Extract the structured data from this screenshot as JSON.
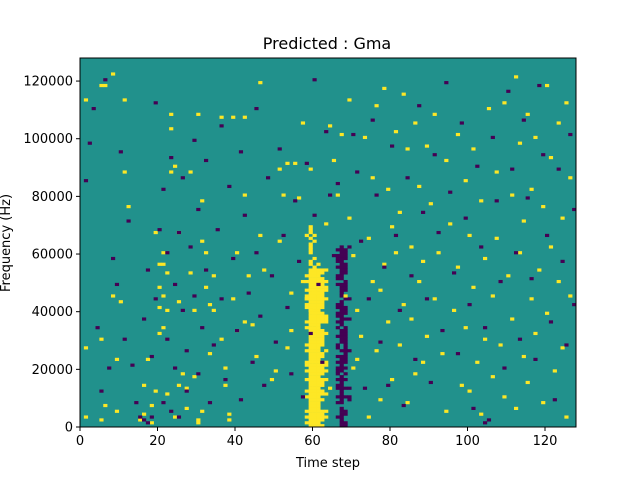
{
  "chart_data": {
    "type": "heatmap",
    "title": "Predicted : Gma",
    "xlabel": "Time step",
    "ylabel": "Frequency (Hz)",
    "xlim": [
      0,
      128
    ],
    "ylim": [
      0,
      128000
    ],
    "x_ticks": [
      0,
      20,
      40,
      60,
      80,
      100,
      120
    ],
    "y_ticks": [
      0,
      20000,
      40000,
      60000,
      80000,
      100000,
      120000
    ],
    "colormap": "viridis",
    "colors": {
      "background": "#21918c",
      "low": "#440154",
      "high": "#fde725"
    },
    "dominant_feature": "vertical band of high values around time steps 58-63 with a parallel band of low values around time steps 66-70",
    "cells_high": [
      [
        1,
        113
      ],
      [
        1,
        27
      ],
      [
        1,
        3
      ],
      [
        5,
        118
      ],
      [
        5,
        30
      ],
      [
        5,
        2
      ],
      [
        6,
        7
      ],
      [
        6,
        118
      ],
      [
        8,
        122
      ],
      [
        8,
        45
      ],
      [
        9,
        23
      ],
      [
        9,
        5
      ],
      [
        10,
        43
      ],
      [
        11,
        113
      ],
      [
        11,
        88
      ],
      [
        12,
        76
      ],
      [
        15,
        2
      ],
      [
        16,
        14
      ],
      [
        16,
        4
      ],
      [
        17,
        23
      ],
      [
        18,
        1
      ],
      [
        18,
        7
      ],
      [
        19,
        67
      ],
      [
        19,
        12
      ],
      [
        20,
        56
      ],
      [
        20,
        48
      ],
      [
        20,
        32
      ],
      [
        20,
        41
      ],
      [
        21,
        60
      ],
      [
        21,
        34
      ],
      [
        21,
        45
      ],
      [
        21,
        56
      ],
      [
        22,
        53
      ],
      [
        22,
        40
      ],
      [
        22,
        11
      ],
      [
        23,
        108
      ],
      [
        23,
        88
      ],
      [
        23,
        103
      ],
      [
        24,
        90
      ],
      [
        24,
        3
      ],
      [
        25,
        67
      ],
      [
        25,
        43
      ],
      [
        25,
        14
      ],
      [
        26,
        18
      ],
      [
        27,
        6
      ],
      [
        27,
        13
      ],
      [
        28,
        88
      ],
      [
        28,
        53
      ],
      [
        29,
        40
      ],
      [
        29,
        17
      ],
      [
        30,
        108
      ],
      [
        30,
        1
      ],
      [
        30,
        2
      ],
      [
        31,
        78
      ],
      [
        31,
        64
      ],
      [
        31,
        5
      ],
      [
        32,
        60
      ],
      [
        32,
        48
      ],
      [
        33,
        42
      ],
      [
        33,
        25
      ],
      [
        34,
        52
      ],
      [
        34,
        40
      ],
      [
        36,
        107
      ],
      [
        36,
        30
      ],
      [
        37,
        20
      ],
      [
        37,
        14
      ],
      [
        38,
        4
      ],
      [
        38,
        2
      ],
      [
        39,
        107
      ],
      [
        39,
        44
      ],
      [
        40,
        60
      ],
      [
        40,
        33
      ],
      [
        42,
        107
      ],
      [
        42,
        80
      ],
      [
        42,
        36
      ],
      [
        43,
        52
      ],
      [
        44,
        35
      ],
      [
        45,
        24
      ],
      [
        46,
        119
      ],
      [
        46,
        66
      ],
      [
        47,
        54
      ],
      [
        49,
        16
      ],
      [
        50,
        19
      ],
      [
        51,
        89
      ],
      [
        51,
        64
      ],
      [
        52,
        80
      ],
      [
        53,
        91
      ],
      [
        53,
        27
      ],
      [
        54,
        46
      ],
      [
        54,
        33
      ],
      [
        55,
        91
      ],
      [
        56,
        79
      ],
      [
        57,
        105
      ],
      [
        57,
        50
      ],
      [
        58,
        66
      ],
      [
        58,
        44
      ],
      [
        59,
        89
      ],
      [
        59,
        40
      ],
      [
        60,
        46
      ],
      [
        60,
        39
      ],
      [
        61,
        56
      ],
      [
        61,
        34
      ],
      [
        62,
        49
      ],
      [
        62,
        12
      ],
      [
        63,
        70
      ],
      [
        63,
        26
      ],
      [
        64,
        104
      ],
      [
        64,
        13
      ],
      [
        65,
        92
      ],
      [
        66,
        80
      ],
      [
        67,
        101
      ],
      [
        68,
        45
      ],
      [
        69,
        113
      ],
      [
        69,
        72
      ],
      [
        70,
        20
      ],
      [
        70,
        59
      ],
      [
        71,
        40
      ],
      [
        71,
        23
      ],
      [
        72,
        31
      ],
      [
        73,
        100
      ],
      [
        74,
        65
      ],
      [
        74,
        3
      ],
      [
        75,
        86
      ],
      [
        75,
        50
      ],
      [
        76,
        111
      ],
      [
        76,
        26
      ],
      [
        77,
        47
      ],
      [
        77,
        9
      ],
      [
        78,
        117
      ],
      [
        78,
        56
      ],
      [
        79,
        82
      ],
      [
        79,
        36
      ],
      [
        80,
        69
      ],
      [
        80,
        16
      ],
      [
        81,
        102
      ],
      [
        81,
        60
      ],
      [
        82,
        74
      ],
      [
        82,
        28
      ],
      [
        83,
        115
      ],
      [
        83,
        42
      ],
      [
        84,
        96
      ],
      [
        84,
        8
      ],
      [
        85,
        62
      ],
      [
        85,
        37
      ],
      [
        86,
        105
      ],
      [
        86,
        18
      ],
      [
        87,
        83
      ],
      [
        87,
        50
      ],
      [
        88,
        22
      ],
      [
        88,
        57
      ],
      [
        89,
        97
      ],
      [
        89,
        31
      ],
      [
        90,
        77
      ],
      [
        91,
        108
      ],
      [
        91,
        44
      ],
      [
        92,
        60
      ],
      [
        93,
        25
      ],
      [
        94,
        92
      ],
      [
        94,
        5
      ],
      [
        95,
        70
      ],
      [
        96,
        40
      ],
      [
        97,
        101
      ],
      [
        97,
        55
      ],
      [
        98,
        14
      ],
      [
        99,
        85
      ],
      [
        99,
        34
      ],
      [
        100,
        66
      ],
      [
        100,
        12
      ],
      [
        101,
        96
      ],
      [
        101,
        48
      ],
      [
        102,
        22
      ],
      [
        103,
        78
      ],
      [
        103,
        4
      ],
      [
        104,
        58
      ],
      [
        104,
        30
      ],
      [
        105,
        110
      ],
      [
        106,
        45
      ],
      [
        106,
        17
      ],
      [
        107,
        88
      ],
      [
        107,
        65
      ],
      [
        108,
        28
      ],
      [
        109,
        112
      ],
      [
        109,
        10
      ],
      [
        110,
        52
      ],
      [
        111,
        80
      ],
      [
        111,
        37
      ],
      [
        112,
        121
      ],
      [
        112,
        6
      ],
      [
        113,
        60
      ],
      [
        113,
        98
      ],
      [
        114,
        24
      ],
      [
        114,
        71
      ],
      [
        115,
        108
      ],
      [
        115,
        15
      ],
      [
        116,
        44
      ],
      [
        116,
        82
      ],
      [
        117,
        32
      ],
      [
        117,
        100
      ],
      [
        118,
        54
      ],
      [
        119,
        8
      ],
      [
        119,
        76
      ],
      [
        120,
        118
      ],
      [
        120,
        39
      ],
      [
        121,
        62
      ],
      [
        121,
        93
      ],
      [
        122,
        19
      ],
      [
        123,
        105
      ],
      [
        123,
        50
      ],
      [
        124,
        72
      ],
      [
        124,
        27
      ],
      [
        125,
        112
      ],
      [
        125,
        3
      ],
      [
        126,
        86
      ],
      [
        126,
        45
      ]
    ],
    "cells_low": [
      [
        1,
        85
      ],
      [
        2,
        98
      ],
      [
        3,
        110
      ],
      [
        4,
        34
      ],
      [
        5,
        12
      ],
      [
        6,
        120
      ],
      [
        7,
        20
      ],
      [
        8,
        58
      ],
      [
        9,
        49
      ],
      [
        10,
        95
      ],
      [
        11,
        30
      ],
      [
        12,
        71
      ],
      [
        13,
        21
      ],
      [
        14,
        8
      ],
      [
        15,
        3
      ],
      [
        16,
        37
      ],
      [
        16,
        2
      ],
      [
        17,
        54
      ],
      [
        17,
        1
      ],
      [
        18,
        3
      ],
      [
        18,
        24
      ],
      [
        19,
        44
      ],
      [
        19,
        112
      ],
      [
        20,
        68
      ],
      [
        21,
        82
      ],
      [
        21,
        8
      ],
      [
        22,
        60
      ],
      [
        22,
        30
      ],
      [
        23,
        5
      ],
      [
        23,
        93
      ],
      [
        24,
        49
      ],
      [
        24,
        20
      ],
      [
        25,
        67
      ],
      [
        25,
        3
      ],
      [
        26,
        40
      ],
      [
        26,
        86
      ],
      [
        27,
        26
      ],
      [
        27,
        12
      ],
      [
        28,
        62
      ],
      [
        29,
        99
      ],
      [
        29,
        45
      ],
      [
        30,
        18
      ],
      [
        30,
        75
      ],
      [
        31,
        34
      ],
      [
        32,
        92
      ],
      [
        32,
        54
      ],
      [
        33,
        8
      ],
      [
        34,
        28
      ],
      [
        35,
        68
      ],
      [
        36,
        104
      ],
      [
        36,
        44
      ],
      [
        37,
        16
      ],
      [
        38,
        83
      ],
      [
        39,
        58
      ],
      [
        40,
        33
      ],
      [
        41,
        95
      ],
      [
        41,
        9
      ],
      [
        42,
        73
      ],
      [
        43,
        46
      ],
      [
        44,
        22
      ],
      [
        45,
        110
      ],
      [
        45,
        60
      ],
      [
        46,
        38
      ],
      [
        47,
        14
      ],
      [
        48,
        86
      ],
      [
        49,
        52
      ],
      [
        50,
        29
      ],
      [
        51,
        96
      ],
      [
        52,
        66
      ],
      [
        53,
        41
      ],
      [
        54,
        18
      ],
      [
        55,
        78
      ],
      [
        56,
        57
      ],
      [
        57,
        10
      ],
      [
        58,
        91
      ],
      [
        59,
        32
      ],
      [
        60,
        120
      ],
      [
        60,
        73
      ],
      [
        61,
        49
      ],
      [
        62,
        22
      ],
      [
        63,
        102
      ],
      [
        64,
        80
      ],
      [
        65,
        59
      ],
      [
        66,
        84
      ],
      [
        70,
        101
      ],
      [
        71,
        88
      ],
      [
        72,
        64
      ],
      [
        73,
        13
      ],
      [
        74,
        44
      ],
      [
        75,
        106
      ],
      [
        76,
        80
      ],
      [
        77,
        29
      ],
      [
        78,
        55
      ],
      [
        79,
        14
      ],
      [
        80,
        97
      ],
      [
        81,
        66
      ],
      [
        82,
        40
      ],
      [
        83,
        7
      ],
      [
        84,
        86
      ],
      [
        85,
        52
      ],
      [
        86,
        23
      ],
      [
        87,
        111
      ],
      [
        88,
        74
      ],
      [
        89,
        44
      ],
      [
        90,
        15
      ],
      [
        91,
        94
      ],
      [
        92,
        67
      ],
      [
        93,
        33
      ],
      [
        94,
        119
      ],
      [
        95,
        81
      ],
      [
        96,
        53
      ],
      [
        97,
        25
      ],
      [
        98,
        105
      ],
      [
        99,
        72
      ],
      [
        100,
        42
      ],
      [
        101,
        6
      ],
      [
        102,
        90
      ],
      [
        103,
        62
      ],
      [
        104,
        1
      ],
      [
        104,
        34
      ],
      [
        105,
        2
      ],
      [
        106,
        100
      ],
      [
        107,
        78
      ],
      [
        108,
        50
      ],
      [
        109,
        20
      ],
      [
        110,
        116
      ],
      [
        111,
        89
      ],
      [
        112,
        60
      ],
      [
        113,
        30
      ],
      [
        114,
        106
      ],
      [
        115,
        79
      ],
      [
        116,
        51
      ],
      [
        117,
        23
      ],
      [
        118,
        118
      ],
      [
        119,
        94
      ],
      [
        120,
        66
      ],
      [
        121,
        36
      ],
      [
        122,
        9
      ],
      [
        123,
        89
      ],
      [
        124,
        57
      ],
      [
        125,
        28
      ],
      [
        126,
        101
      ],
      [
        127,
        75
      ],
      [
        127,
        42
      ]
    ]
  }
}
